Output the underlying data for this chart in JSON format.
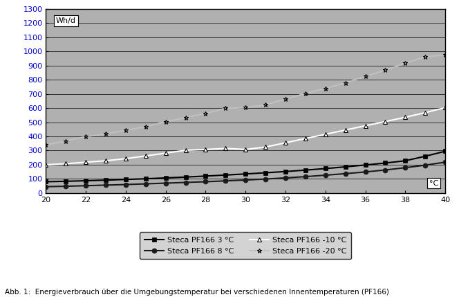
{
  "x": [
    20,
    21,
    22,
    23,
    24,
    25,
    26,
    27,
    28,
    29,
    30,
    31,
    32,
    33,
    34,
    35,
    36,
    37,
    38,
    39,
    40
  ],
  "series": {
    "3C": [
      80,
      83,
      87,
      91,
      96,
      101,
      107,
      113,
      120,
      127,
      135,
      143,
      152,
      162,
      173,
      185,
      198,
      212,
      228,
      260,
      295
    ],
    "8C": [
      45,
      48,
      52,
      56,
      60,
      65,
      70,
      75,
      80,
      86,
      92,
      99,
      107,
      116,
      126,
      137,
      149,
      163,
      179,
      197,
      218
    ],
    "m10C": [
      200,
      207,
      218,
      228,
      243,
      262,
      282,
      302,
      308,
      315,
      308,
      325,
      355,
      385,
      415,
      445,
      475,
      505,
      535,
      568,
      603
    ],
    "m20C": [
      340,
      368,
      398,
      418,
      443,
      468,
      503,
      533,
      563,
      598,
      603,
      623,
      663,
      703,
      738,
      778,
      823,
      868,
      918,
      962,
      975
    ]
  },
  "colors": {
    "3C": "#000000",
    "8C": "#1a1a1a",
    "m10C": "#ffffff",
    "m20C": "#c0c0c0"
  },
  "markers": {
    "3C": "s",
    "8C": "o",
    "m10C": "^",
    "m20C": "*"
  },
  "marker_facecolors": {
    "3C": "#000000",
    "8C": "#1a1a1a",
    "m10C": "#ffffff",
    "m20C": "#c0c0c0"
  },
  "legend_labels": {
    "3C": "Steca PF166 3 °C",
    "8C": "Steca PF166 8 °C",
    "m10C": "Steca PF166 -10 °C",
    "m20C": "Steca PF166 -20 °C"
  },
  "ylabel_text": "Wh/d",
  "xlabel_label": "°C",
  "ylim": [
    0,
    1300
  ],
  "xlim": [
    20,
    40
  ],
  "yticks": [
    0,
    100,
    200,
    300,
    400,
    500,
    600,
    700,
    800,
    900,
    1000,
    1100,
    1200,
    1300
  ],
  "xticks": [
    20,
    22,
    24,
    26,
    28,
    30,
    32,
    34,
    36,
    38,
    40
  ],
  "caption": "Abb. 1:  Energieverbrauch über die Umgebungstemperatur bei verschiedenen Innentemperaturen (PF166)",
  "fig_bg_color": "#ffffff",
  "plot_bg_color": "#b0b0b0",
  "grid_color": "#000000",
  "line_width": 1.5,
  "marker_size": 5,
  "tick_label_color": "#0000cc",
  "axis_label_fontsize": 8,
  "tick_fontsize": 8
}
